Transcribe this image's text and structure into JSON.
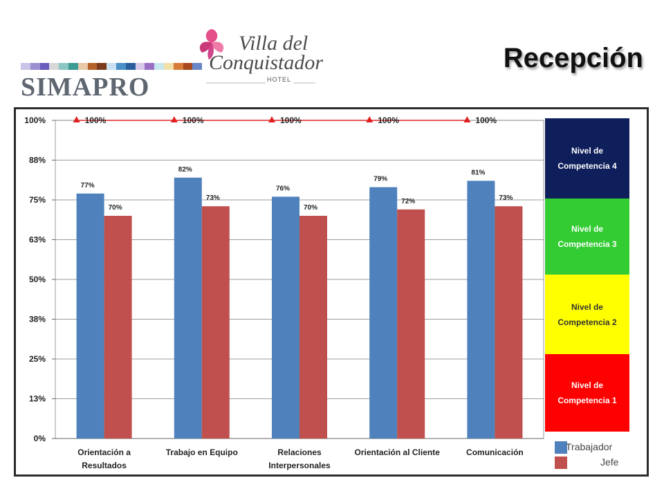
{
  "header": {
    "brand": "SIMAPRO",
    "hotel_line1": "Villa del",
    "hotel_line2": "Conquistador",
    "hotel_sub": "HOTEL",
    "page_title": "Recepción",
    "strip_colors": [
      "#c9c3e8",
      "#9b8fd0",
      "#6b5cc0",
      "#d8d8d8",
      "#8cc6c3",
      "#3d9b95",
      "#e8c9a8",
      "#b5622a",
      "#7a3b1c",
      "#c9e0f2",
      "#4a90c8",
      "#2a5f9e",
      "#d8c9e8",
      "#9a6fc4",
      "#c8e8f0",
      "#f0e0a8",
      "#d87a38",
      "#a8481f",
      "#6a86c8"
    ]
  },
  "chart_data": {
    "type": "bar",
    "categories": [
      [
        "Orientación a",
        "Resultados"
      ],
      [
        "Trabajo en Equipo"
      ],
      [
        "Relaciones",
        "Interpersonales"
      ],
      [
        "Orientación al Cliente"
      ],
      [
        "Comunicación"
      ]
    ],
    "series": [
      {
        "name": "Trabajador",
        "values": [
          77,
          82,
          76,
          79,
          81
        ],
        "labels": [
          "77%",
          "82%",
          "76%",
          "79%",
          "81%"
        ],
        "color": "#4f81bd"
      },
      {
        "name": "Jefe",
        "values": [
          70,
          73,
          70,
          72,
          73
        ],
        "labels": [
          "70%",
          "73%",
          "70%",
          "72%",
          "73%"
        ],
        "color": "#c0504d"
      }
    ],
    "target": {
      "values": [
        100,
        100,
        100,
        100,
        100
      ],
      "labels": [
        "100%",
        "100%",
        "100%",
        "100%",
        "100%"
      ],
      "color": "#e02020"
    },
    "yticks": [
      0,
      12.5,
      25,
      37.5,
      50,
      62.5,
      75,
      87.5,
      100
    ],
    "ytick_labels": [
      "0%",
      "13%",
      "25%",
      "38%",
      "50%",
      "63%",
      "75%",
      "88%",
      "100%"
    ],
    "ylim": [
      0,
      100
    ],
    "grid": true
  },
  "levels": [
    {
      "label": "Nivel de Competencia 4",
      "bg": "#0f1f5c",
      "fg": "#ffffff"
    },
    {
      "label": "Nivel de Competencia 3",
      "bg": "#33cc33",
      "fg": "#ffffff"
    },
    {
      "label": "Nivel de Competencia 2",
      "bg": "#ffff00",
      "fg": "#333333"
    },
    {
      "label": "Nivel de Competencia 1",
      "bg": "#ff0000",
      "fg": "#ffffff"
    }
  ],
  "legend": [
    {
      "label": "Trabajador",
      "color": "#4f81bd"
    },
    {
      "label": "Jefe",
      "color": "#c0504d"
    }
  ]
}
